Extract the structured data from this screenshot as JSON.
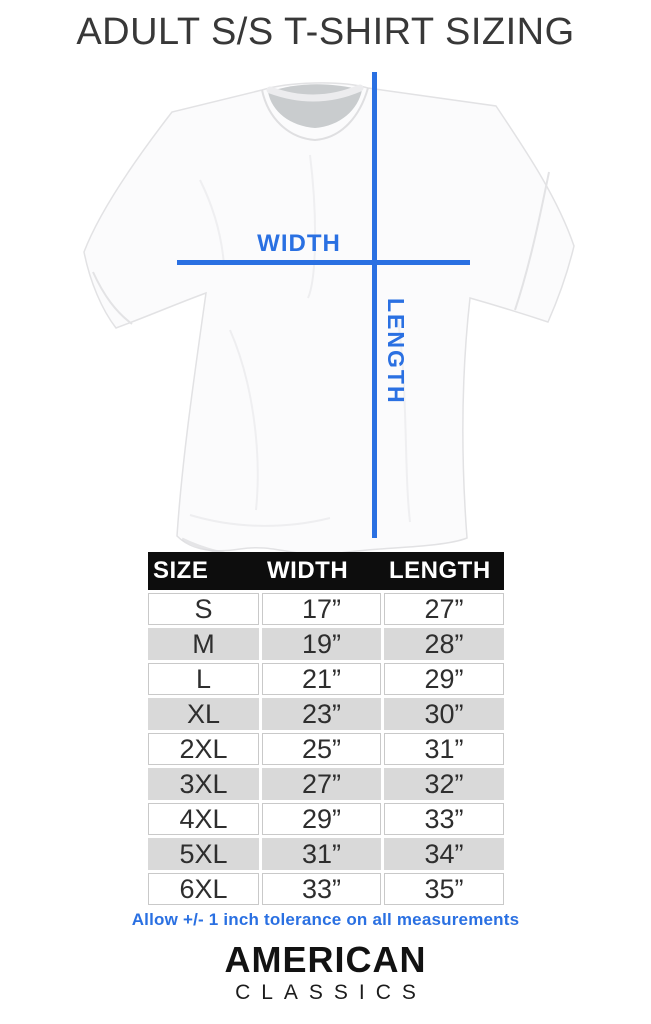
{
  "page": {
    "title": "ADULT S/S T-SHIRT SIZING"
  },
  "colors": {
    "accent_blue": "#2a70e2",
    "header_black": "#0d0d0d",
    "row_gray": "#d9d9d9",
    "cell_border": "#c9c9c9",
    "text_ink": "#2e2e2e"
  },
  "diagram": {
    "shirt": "white-short-sleeve-tee-illustration",
    "width_label": "WIDTH",
    "length_label": "LENGTH"
  },
  "size_table": {
    "columns": [
      "SIZE",
      "WIDTH",
      "LENGTH"
    ],
    "rows": [
      {
        "size": "S",
        "width": "17”",
        "length": "27”"
      },
      {
        "size": "M",
        "width": "19”",
        "length": "28”"
      },
      {
        "size": "L",
        "width": "21”",
        "length": "29”"
      },
      {
        "size": "XL",
        "width": "23”",
        "length": "30”"
      },
      {
        "size": "2XL",
        "width": "25”",
        "length": "31”"
      },
      {
        "size": "3XL",
        "width": "27”",
        "length": "32”"
      },
      {
        "size": "4XL",
        "width": "29”",
        "length": "33”"
      },
      {
        "size": "5XL",
        "width": "31”",
        "length": "34”"
      },
      {
        "size": "6XL",
        "width": "33”",
        "length": "35”"
      }
    ]
  },
  "tolerance_note": "Allow +/- 1 inch tolerance on all measurements",
  "brand": {
    "line1": "AMERICAN",
    "line2": "CLASSICS"
  }
}
